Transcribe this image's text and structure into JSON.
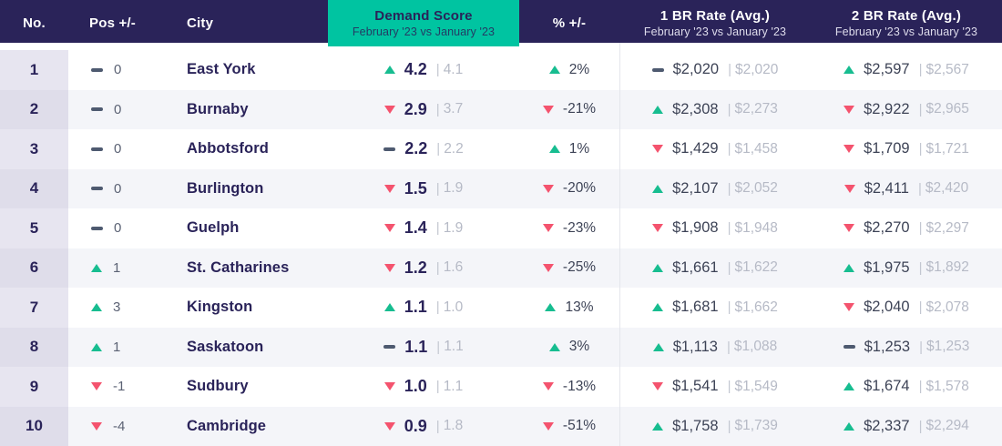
{
  "colors": {
    "navy": "#2A2359",
    "teal": "#00C4A1",
    "green": "#17BD90",
    "red": "#F4536E",
    "slate": "#3D4356",
    "muted": "#B6BAC6",
    "row-alt": "#F4F5F9",
    "rank-bg": "#E7E5F0",
    "rank-bg-alt": "#DFDDEA"
  },
  "separator": "|",
  "header": {
    "no": "No.",
    "pos": "Pos +/-",
    "city": "City",
    "pct": "% +/-",
    "demand": {
      "title": "Demand Score",
      "subtitle": "February '23 vs January '23"
    },
    "br1": {
      "title": "1 BR Rate (Avg.)",
      "subtitle": "February '23 vs January '23"
    },
    "br2": {
      "title": "2 BR Rate (Avg.)",
      "subtitle": "February '23 vs January '23"
    }
  },
  "chart_data": {
    "type": "table",
    "title": "Demand Score February '23 vs January '23",
    "columns": [
      "No.",
      "Pos +/-",
      "City",
      "Demand Score",
      "% +/-",
      "1 BR Rate (Avg.)",
      "2 BR Rate (Avg.)"
    ],
    "rows": [
      {
        "no": "1",
        "pos_dir": "flat",
        "pos": "0",
        "city": "East York",
        "demand_dir": "up",
        "demand": "4.2",
        "demand_prev": "4.1",
        "pct_dir": "up",
        "pct": "2%",
        "br1_dir": "flat",
        "br1": "$2,020",
        "br1_prev": "$2,020",
        "br2_dir": "up",
        "br2": "$2,597",
        "br2_prev": "$2,567"
      },
      {
        "no": "2",
        "pos_dir": "flat",
        "pos": "0",
        "city": "Burnaby",
        "demand_dir": "down",
        "demand": "2.9",
        "demand_prev": "3.7",
        "pct_dir": "down",
        "pct": "-21%",
        "br1_dir": "up",
        "br1": "$2,308",
        "br1_prev": "$2,273",
        "br2_dir": "down",
        "br2": "$2,922",
        "br2_prev": "$2,965"
      },
      {
        "no": "3",
        "pos_dir": "flat",
        "pos": "0",
        "city": "Abbotsford",
        "demand_dir": "flat",
        "demand": "2.2",
        "demand_prev": "2.2",
        "pct_dir": "up",
        "pct": "1%",
        "br1_dir": "down",
        "br1": "$1,429",
        "br1_prev": "$1,458",
        "br2_dir": "down",
        "br2": "$1,709",
        "br2_prev": "$1,721"
      },
      {
        "no": "4",
        "pos_dir": "flat",
        "pos": "0",
        "city": "Burlington",
        "demand_dir": "down",
        "demand": "1.5",
        "demand_prev": "1.9",
        "pct_dir": "down",
        "pct": "-20%",
        "br1_dir": "up",
        "br1": "$2,107",
        "br1_prev": "$2,052",
        "br2_dir": "down",
        "br2": "$2,411",
        "br2_prev": "$2,420"
      },
      {
        "no": "5",
        "pos_dir": "flat",
        "pos": "0",
        "city": "Guelph",
        "demand_dir": "down",
        "demand": "1.4",
        "demand_prev": "1.9",
        "pct_dir": "down",
        "pct": "-23%",
        "br1_dir": "down",
        "br1": "$1,908",
        "br1_prev": "$1,948",
        "br2_dir": "down",
        "br2": "$2,270",
        "br2_prev": "$2,297"
      },
      {
        "no": "6",
        "pos_dir": "up",
        "pos": "1",
        "city": "St. Catharines",
        "demand_dir": "down",
        "demand": "1.2",
        "demand_prev": "1.6",
        "pct_dir": "down",
        "pct": "-25%",
        "br1_dir": "up",
        "br1": "$1,661",
        "br1_prev": "$1,622",
        "br2_dir": "up",
        "br2": "$1,975",
        "br2_prev": "$1,892"
      },
      {
        "no": "7",
        "pos_dir": "up",
        "pos": "3",
        "city": "Kingston",
        "demand_dir": "up",
        "demand": "1.1",
        "demand_prev": "1.0",
        "pct_dir": "up",
        "pct": "13%",
        "br1_dir": "up",
        "br1": "$1,681",
        "br1_prev": "$1,662",
        "br2_dir": "down",
        "br2": "$2,040",
        "br2_prev": "$2,078"
      },
      {
        "no": "8",
        "pos_dir": "up",
        "pos": "1",
        "city": "Saskatoon",
        "demand_dir": "flat",
        "demand": "1.1",
        "demand_prev": "1.1",
        "pct_dir": "up",
        "pct": "3%",
        "br1_dir": "up",
        "br1": "$1,113",
        "br1_prev": "$1,088",
        "br2_dir": "flat",
        "br2": "$1,253",
        "br2_prev": "$1,253"
      },
      {
        "no": "9",
        "pos_dir": "down",
        "pos": "-1",
        "city": "Sudbury",
        "demand_dir": "down",
        "demand": "1.0",
        "demand_prev": "1.1",
        "pct_dir": "down",
        "pct": "-13%",
        "br1_dir": "down",
        "br1": "$1,541",
        "br1_prev": "$1,549",
        "br2_dir": "up",
        "br2": "$1,674",
        "br2_prev": "$1,578"
      },
      {
        "no": "10",
        "pos_dir": "down",
        "pos": "-4",
        "city": "Cambridge",
        "demand_dir": "down",
        "demand": "0.9",
        "demand_prev": "1.8",
        "pct_dir": "down",
        "pct": "-51%",
        "br1_dir": "up",
        "br1": "$1,758",
        "br1_prev": "$1,739",
        "br2_dir": "up",
        "br2": "$2,337",
        "br2_prev": "$2,294"
      }
    ]
  }
}
